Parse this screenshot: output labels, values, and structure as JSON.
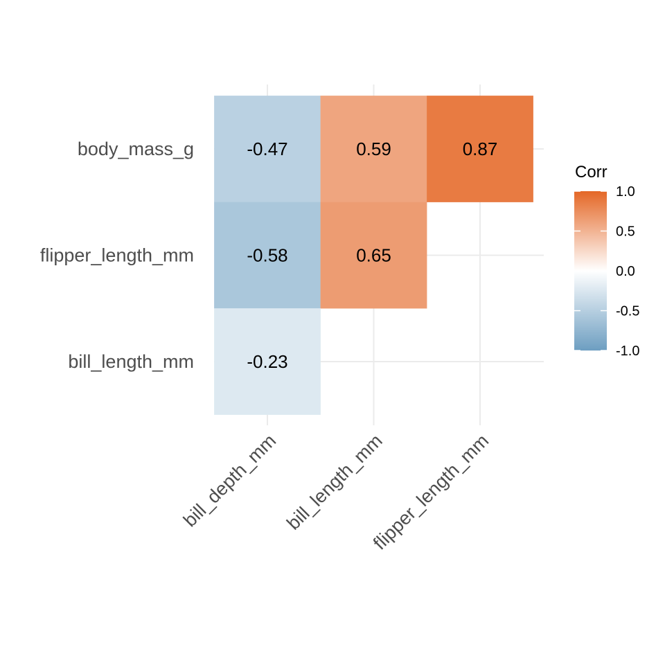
{
  "chart_data": {
    "type": "heatmap",
    "x_categories": [
      "bill_depth_mm",
      "bill_length_mm",
      "flipper_length_mm"
    ],
    "y_categories": [
      "body_mass_g",
      "flipper_length_mm",
      "bill_length_mm"
    ],
    "cells": [
      {
        "x": "bill_depth_mm",
        "y": "body_mass_g",
        "value": -0.47,
        "label": "-0.47"
      },
      {
        "x": "bill_length_mm",
        "y": "body_mass_g",
        "value": 0.59,
        "label": "0.59"
      },
      {
        "x": "flipper_length_mm",
        "y": "body_mass_g",
        "value": 0.87,
        "label": "0.87"
      },
      {
        "x": "bill_depth_mm",
        "y": "flipper_length_mm",
        "value": -0.58,
        "label": "-0.58"
      },
      {
        "x": "bill_length_mm",
        "y": "flipper_length_mm",
        "value": 0.65,
        "label": "0.65"
      },
      {
        "x": "bill_depth_mm",
        "y": "bill_length_mm",
        "value": -0.23,
        "label": "-0.23"
      }
    ],
    "legend": {
      "title": "Corr",
      "range": [
        -1.0,
        1.0
      ],
      "ticks": [
        {
          "value": 1.0,
          "label": "1.0"
        },
        {
          "value": 0.5,
          "label": "0.5"
        },
        {
          "value": 0.0,
          "label": "0.0"
        },
        {
          "value": -0.5,
          "label": "-0.5"
        },
        {
          "value": -1.0,
          "label": "-1.0"
        }
      ],
      "placement": "right"
    },
    "colors": {
      "low": "#6D9EC1",
      "mid": "#FFFFFF",
      "high": "#E46726",
      "grid": "#EBEBEB",
      "axis_text": "#4D4D4D",
      "cell_text": "#000000"
    },
    "grid": true,
    "triangle": "lower"
  }
}
